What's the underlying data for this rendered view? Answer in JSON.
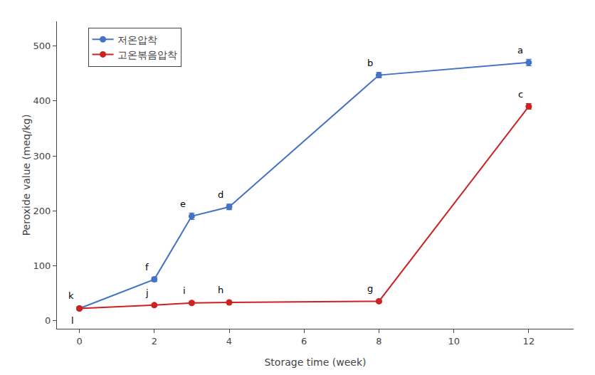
{
  "chart_data": {
    "type": "line",
    "xlabel": "Storage time (week)",
    "ylabel": "Peroxide value (meq/kg)",
    "x": [
      0,
      2,
      3,
      4,
      8,
      12
    ],
    "series": [
      {
        "name": "저온압착",
        "color": "#4472C4",
        "marker": "circle",
        "values": [
          22,
          75,
          190,
          207,
          447,
          470
        ],
        "errors": [
          2,
          4,
          6,
          5,
          5,
          6
        ],
        "annotations": [
          {
            "x": 0,
            "y": 22,
            "text": "k"
          },
          {
            "x": 2,
            "y": 75,
            "text": "f"
          },
          {
            "x": 3,
            "y": 190,
            "text": "e"
          },
          {
            "x": 4,
            "y": 207,
            "text": "d"
          },
          {
            "x": 8,
            "y": 447,
            "text": "b"
          },
          {
            "x": 12,
            "y": 470,
            "text": "a"
          }
        ]
      },
      {
        "name": "고온볶음압착",
        "color": "#CC2222",
        "marker": "circle",
        "values": [
          22,
          28,
          32,
          33,
          35,
          390
        ],
        "errors": [
          2,
          2,
          2,
          2,
          2,
          5
        ],
        "annotations": [
          {
            "x": 0,
            "y": 22,
            "text": "l"
          },
          {
            "x": 2,
            "y": 28,
            "text": "j"
          },
          {
            "x": 3,
            "y": 32,
            "text": "i"
          },
          {
            "x": 4,
            "y": 33,
            "text": "h"
          },
          {
            "x": 8,
            "y": 35,
            "text": "g"
          },
          {
            "x": 12,
            "y": 390,
            "text": "c"
          }
        ]
      }
    ],
    "xlim": [
      -0.6,
      13.2
    ],
    "ylim": [
      -15,
      545
    ],
    "xticks": [
      0,
      2,
      4,
      6,
      8,
      10,
      12
    ],
    "yticks": [
      0,
      100,
      200,
      300,
      400,
      500
    ],
    "grid": false,
    "legend": "upper left"
  }
}
